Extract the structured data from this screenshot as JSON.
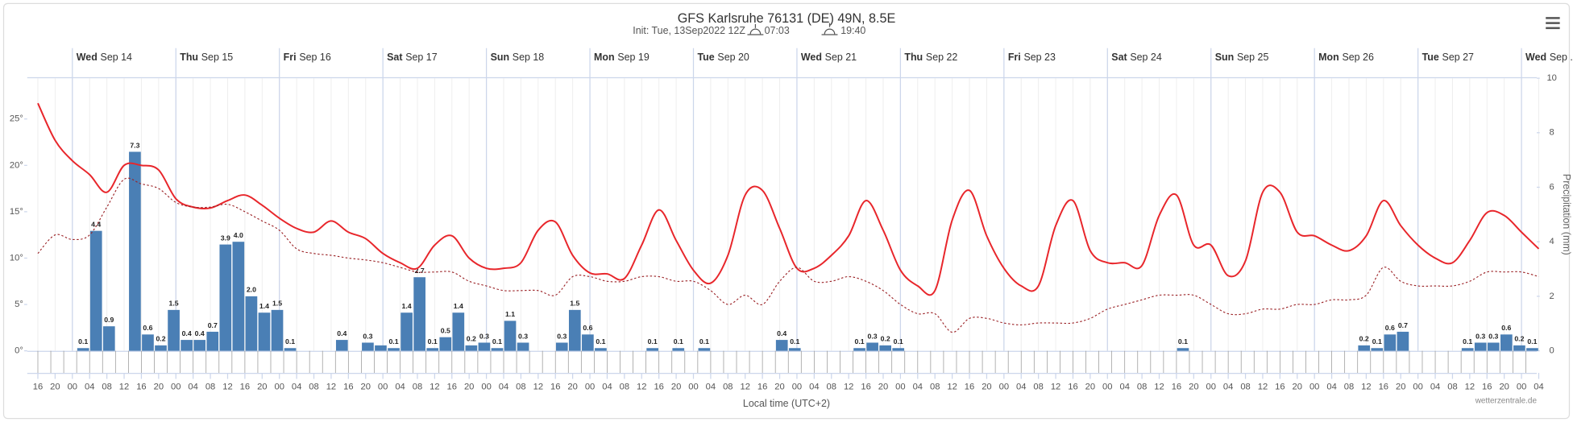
{
  "chart_data": {
    "type": "meteogram",
    "title": "GFS Karlsruhe 76131 (DE) 49N, 8.5E",
    "subtitle": "Init: Tue, 13Sep2022 12Z",
    "sunrise": "07:03",
    "sunset": "19:40",
    "x_title": "Local time (UTC+2)",
    "credit": "wetterzentrale.de",
    "y2_label": "Precipitation (mm)",
    "xticks": [
      "16",
      "20",
      "00",
      "04",
      "08",
      "12",
      "16",
      "20",
      "00",
      "04",
      "08",
      "12",
      "16",
      "20",
      "00",
      "04",
      "08",
      "12",
      "16",
      "20",
      "00",
      "04",
      "08",
      "12",
      "16",
      "20",
      "00",
      "04",
      "08",
      "12",
      "16",
      "20",
      "00",
      "04",
      "08",
      "12",
      "16",
      "20",
      "00",
      "04",
      "08",
      "12",
      "16",
      "20",
      "00",
      "04",
      "08",
      "12",
      "16",
      "20",
      "00",
      "04",
      "08",
      "12",
      "16",
      "20",
      "00",
      "04",
      "08",
      "12",
      "16",
      "20",
      "00",
      "04",
      "08",
      "12",
      "16",
      "20",
      "00",
      "04",
      "08",
      "12",
      "16",
      "20",
      "00",
      "04",
      "08",
      "12",
      "16",
      "20",
      "00",
      "04",
      "08",
      "12",
      "16",
      "20",
      "00",
      "04"
    ],
    "days": [
      {
        "weekday": "Wed",
        "date": "Sep 14"
      },
      {
        "weekday": "Thu",
        "date": "Sep 15"
      },
      {
        "weekday": "Fri",
        "date": "Sep 16"
      },
      {
        "weekday": "Sat",
        "date": "Sep 17"
      },
      {
        "weekday": "Sun",
        "date": "Sep 18"
      },
      {
        "weekday": "Mon",
        "date": "Sep 19"
      },
      {
        "weekday": "Tue",
        "date": "Sep 20"
      },
      {
        "weekday": "Wed",
        "date": "Sep 21"
      },
      {
        "weekday": "Thu",
        "date": "Sep 22"
      },
      {
        "weekday": "Fri",
        "date": "Sep 23"
      },
      {
        "weekday": "Sat",
        "date": "Sep 24"
      },
      {
        "weekday": "Sun",
        "date": "Sep 25"
      },
      {
        "weekday": "Mon",
        "date": "Sep 26"
      },
      {
        "weekday": "Tue",
        "date": "Sep 27"
      },
      {
        "weekday": "Wed",
        "date": "Sep ..."
      }
    ],
    "ylim": [
      0,
      29.4
    ],
    "yticks": [
      {
        "value": 0,
        "label": "0°"
      },
      {
        "value": 5,
        "label": "5°"
      },
      {
        "value": 10,
        "label": "10°"
      },
      {
        "value": 15,
        "label": "15°"
      },
      {
        "value": 20,
        "label": "20°"
      },
      {
        "value": 25,
        "label": "25°"
      }
    ],
    "y2lim": [
      0,
      10
    ],
    "y2ticks": [
      0,
      2,
      4,
      6,
      8,
      10
    ],
    "series": [
      {
        "type": "line",
        "color": "#e8262b",
        "values": [
          26.7,
          22.7,
          20.5,
          19,
          17.1,
          20,
          20,
          19.5,
          16.4,
          15.5,
          15.4,
          16.2,
          16.8,
          15.7,
          14.3,
          13.2,
          12.8,
          14,
          12.8,
          12.1,
          10.5,
          9.5,
          8.9,
          11.4,
          12.4,
          10,
          8.9,
          8.9,
          9.5,
          13,
          13.9,
          10.3,
          8.4,
          8.3,
          7.8,
          11.4,
          15.2,
          11.9,
          8.7,
          7.3,
          10.3,
          16.8,
          17.3,
          13.2,
          8.9,
          8.9,
          10.3,
          12.4,
          16.2,
          13,
          8.7,
          7,
          6.5,
          14.1,
          17.3,
          12.4,
          8.9,
          7,
          7,
          13.5,
          16.2,
          10.8,
          9.5,
          9.5,
          9.2,
          14.6,
          16.8,
          11.4,
          11.4,
          8.1,
          9.7,
          17.1,
          17.1,
          12.8,
          12.4,
          11.4,
          10.8,
          12.4,
          16.2,
          13.5,
          11.4,
          10,
          9.5,
          11.9,
          14.9,
          14.6,
          12.8,
          11
        ]
      },
      {
        "type": "line",
        "dash": true,
        "color": "#9b2226",
        "values": [
          10.5,
          12.5,
          12,
          12.5,
          15.5,
          18.5,
          18,
          17.5,
          16,
          15.5,
          15.5,
          15.8,
          15,
          14,
          13,
          11,
          10.5,
          10.3,
          10,
          9.8,
          9.5,
          9,
          8.5,
          8.5,
          8.5,
          7.5,
          7,
          6.5,
          6.5,
          6.5,
          6,
          8,
          8,
          7.5,
          7.5,
          8,
          8,
          7.5,
          7.5,
          6.5,
          5,
          6,
          5,
          7.5,
          9,
          7.5,
          7.5,
          8,
          7.5,
          6.5,
          5,
          4,
          4,
          2,
          3.5,
          3.5,
          3,
          2.8,
          3,
          3,
          3,
          3.5,
          4.5,
          5,
          5.5,
          6,
          6,
          6,
          5,
          4,
          4,
          4.5,
          4.5,
          5,
          5,
          5.5,
          5.5,
          6,
          9,
          7.5,
          7,
          7,
          7,
          7.5,
          8.5,
          8.5,
          8.5,
          8
        ]
      },
      {
        "type": "bar",
        "axis": "y2",
        "color": "#4a7fb5",
        "values": [
          0,
          0,
          0,
          0.1,
          4.4,
          0.9,
          0,
          7.3,
          0.6,
          0.2,
          1.5,
          0.4,
          0.4,
          0.7,
          3.9,
          4.0,
          2.0,
          1.4,
          1.5,
          0.1,
          0,
          0,
          0,
          0.4,
          0,
          0.3,
          0.2,
          0.1,
          1.4,
          2.7,
          0.1,
          0.5,
          1.4,
          0.2,
          0.3,
          0.1,
          1.1,
          0.3,
          0,
          0,
          0.3,
          1.5,
          0.6,
          0.1,
          0,
          0,
          0,
          0.1,
          0,
          0.1,
          0,
          0.1,
          0,
          0,
          0,
          0,
          0,
          0.4,
          0.1,
          0,
          0,
          0,
          0,
          0.1,
          0.3,
          0.2,
          0.1,
          0,
          0,
          0,
          0,
          0,
          0,
          0,
          0,
          0,
          0,
          0,
          0,
          0,
          0,
          0,
          0,
          0,
          0,
          0,
          0,
          0,
          0.1,
          0,
          0,
          0,
          0,
          0,
          0,
          0,
          0,
          0,
          0,
          0,
          0,
          0,
          0.2,
          0.1,
          0.6,
          0.7,
          0,
          0,
          0,
          0,
          0.1,
          0.3,
          0.3,
          0.6,
          0.2,
          0.1
        ],
        "value_labels": [
          null,
          null,
          null,
          "0.1",
          "4.4",
          "0.9",
          null,
          "7.3",
          "0.6",
          "0.2",
          "1.5",
          "0.4",
          "0.4",
          "0.7",
          "3.9",
          "4.0",
          "2.0",
          "1.4",
          "1.5",
          "0.1",
          null,
          null,
          null,
          "0.4",
          null,
          "0.3",
          null,
          "0.1",
          "1.4",
          "2.7",
          "0.1",
          "0.5",
          "1.4",
          "0.2",
          "0.3",
          "0.1",
          "1.1",
          "0.3",
          null,
          null,
          "0.3",
          "1.5",
          "0.6",
          "0.1",
          null,
          null,
          null,
          "0.1",
          null,
          "0.1",
          null,
          "0.1",
          null,
          null,
          null,
          null,
          null,
          "0.4",
          "0.1",
          null,
          null,
          null,
          null,
          "0.1",
          "0.3",
          "0.2",
          "0.1",
          null,
          null,
          null,
          null,
          null,
          null,
          null,
          null,
          null,
          null,
          null,
          null,
          null,
          null,
          null,
          null,
          null,
          null,
          null,
          null,
          null,
          "0.1",
          null,
          null,
          null,
          null,
          null,
          null,
          null,
          null,
          null,
          null,
          null,
          null,
          null,
          "0.2",
          "0.1",
          "0.6",
          "0.7",
          null,
          null,
          null,
          null,
          "0.1",
          "0.3",
          "0.3",
          "0.6",
          "0.2",
          "0.1"
        ]
      }
    ]
  }
}
